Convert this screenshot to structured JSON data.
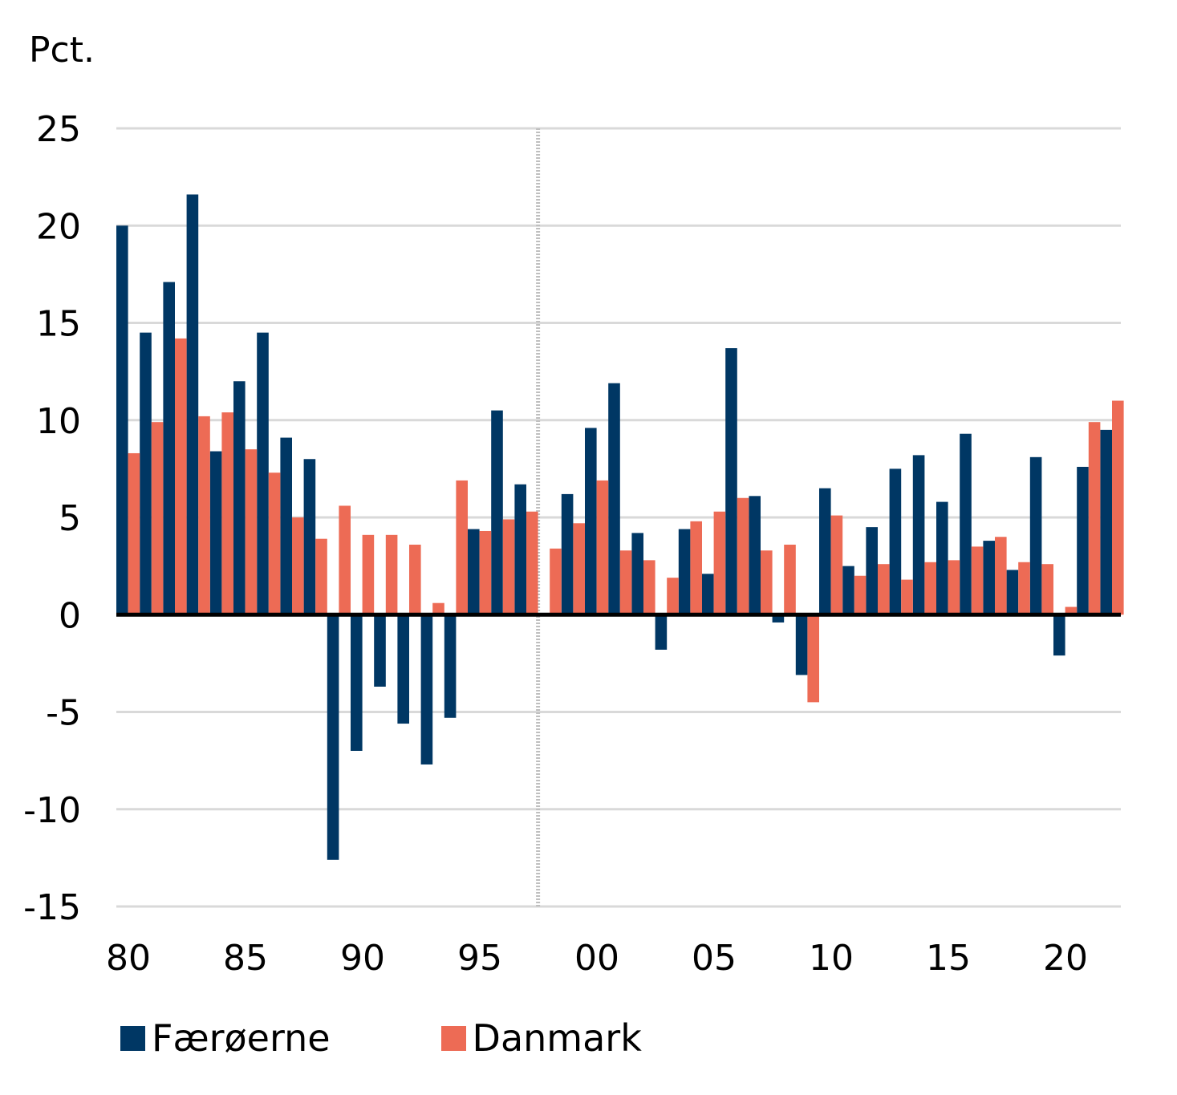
{
  "chart_data": {
    "type": "bar",
    "y_unit_label": "Pct.",
    "ylim": [
      -15,
      25
    ],
    "yticks": [
      25,
      20,
      15,
      10,
      5,
      0,
      -5,
      -10,
      -15
    ],
    "x_start_year": 1980,
    "x_tick_labels": [
      {
        "year": 1980,
        "label": "80"
      },
      {
        "year": 1985,
        "label": "85"
      },
      {
        "year": 1990,
        "label": "90"
      },
      {
        "year": 1995,
        "label": "95"
      },
      {
        "year": 2000,
        "label": "00"
      },
      {
        "year": 2005,
        "label": "05"
      },
      {
        "year": 2010,
        "label": "10"
      },
      {
        "year": 2015,
        "label": "15"
      },
      {
        "year": 2020,
        "label": "20"
      }
    ],
    "vertical_marker_between_years": [
      1997,
      1998
    ],
    "grid": true,
    "legend_position": "bottom-left",
    "series": [
      {
        "name": "Færøerne",
        "color": "#003764",
        "values": [
          20.0,
          14.5,
          17.1,
          21.6,
          8.4,
          12.0,
          14.5,
          9.1,
          8.0,
          -12.6,
          -7.0,
          -3.7,
          -5.6,
          -7.7,
          -5.3,
          4.4,
          10.5,
          6.7,
          null,
          6.2,
          9.6,
          11.9,
          4.2,
          -1.8,
          4.4,
          2.1,
          13.7,
          6.1,
          -0.4,
          -3.1,
          6.5,
          2.5,
          4.5,
          7.5,
          8.2,
          5.8,
          9.3,
          3.8,
          2.3,
          8.1,
          -2.1,
          7.6,
          9.5
        ]
      },
      {
        "name": "Danmark",
        "color": "#ED6B55",
        "values": [
          8.3,
          9.9,
          14.2,
          10.2,
          10.4,
          8.5,
          7.3,
          5.0,
          3.9,
          5.6,
          4.1,
          4.1,
          3.6,
          0.6,
          6.9,
          4.3,
          4.9,
          5.3,
          3.4,
          4.7,
          6.9,
          3.3,
          2.8,
          1.9,
          4.8,
          5.3,
          6.0,
          3.3,
          3.6,
          -4.5,
          5.1,
          2.0,
          2.6,
          1.8,
          2.7,
          2.8,
          3.5,
          4.0,
          2.7,
          2.6,
          0.4,
          9.9,
          11.0
        ]
      }
    ]
  }
}
